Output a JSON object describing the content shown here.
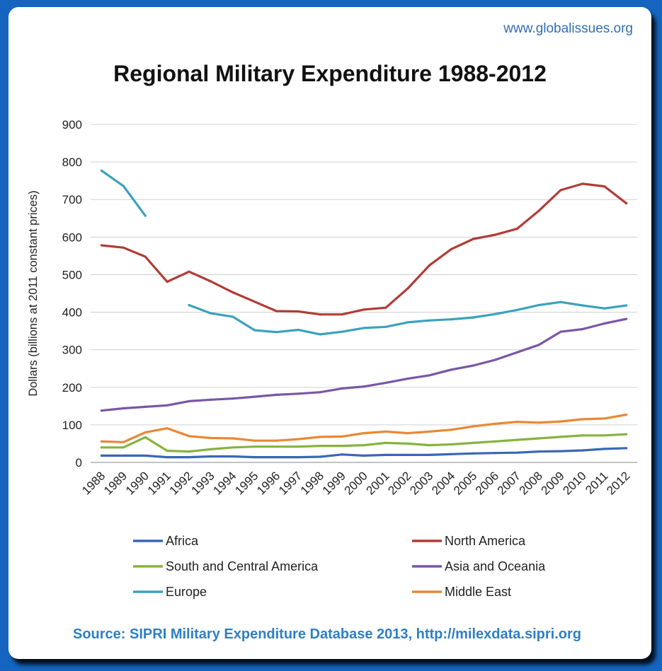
{
  "header": {
    "site_url": "www.globalissues.org",
    "source": "Source: SIPRI Military Expenditure Database 2013, http://milexdata.sipri.org"
  },
  "chart_data": {
    "type": "line",
    "title": "Regional Military Expenditure 1988-2012",
    "xlabel": "",
    "ylabel": "Dollars (billions at 2011 constant prices)",
    "ylim": [
      0,
      900
    ],
    "yticks": [
      0,
      100,
      200,
      300,
      400,
      500,
      600,
      700,
      800,
      900
    ],
    "grid": true,
    "legend_position": "bottom",
    "categories": [
      "1988",
      "1989",
      "1990",
      "1991",
      "1992",
      "1993",
      "1994",
      "1995",
      "1996",
      "1997",
      "1998",
      "1999",
      "2000",
      "2001",
      "2002",
      "2003",
      "2004",
      "2005",
      "2006",
      "2007",
      "2008",
      "2009",
      "2010",
      "2011",
      "2012"
    ],
    "series": [
      {
        "name": "Africa",
        "color": "#3a67b5",
        "values": [
          18,
          18,
          18,
          14,
          14,
          16,
          16,
          14,
          14,
          14,
          15,
          21,
          18,
          20,
          20,
          20,
          22,
          24,
          25,
          26,
          29,
          30,
          32,
          36,
          38
        ]
      },
      {
        "name": "North America",
        "color": "#b23c36",
        "values": [
          578,
          572,
          548,
          481,
          508,
          482,
          453,
          428,
          403,
          402,
          394,
          394,
          407,
          412,
          463,
          525,
          568,
          595,
          606,
          622,
          670,
          725,
          742,
          735,
          690
        ]
      },
      {
        "name": "South and Central America",
        "color": "#86b33f",
        "values": [
          40,
          40,
          67,
          31,
          29,
          35,
          40,
          42,
          42,
          42,
          44,
          44,
          46,
          52,
          50,
          46,
          48,
          52,
          56,
          60,
          64,
          68,
          72,
          72,
          75
        ]
      },
      {
        "name": "Asia and Oceania",
        "color": "#7a56a6",
        "values": [
          138,
          144,
          148,
          152,
          163,
          167,
          170,
          175,
          180,
          183,
          187,
          197,
          202,
          212,
          223,
          232,
          247,
          258,
          273,
          293,
          313,
          348,
          355,
          370,
          382
        ]
      },
      {
        "name": "Europe",
        "color": "#3aa2be",
        "values": [
          777,
          736,
          657,
          null,
          419,
          397,
          388,
          352,
          347,
          353,
          341,
          348,
          358,
          361,
          373,
          378,
          381,
          386,
          395,
          406,
          419,
          427,
          418,
          410,
          418
        ]
      },
      {
        "name": "Middle East",
        "color": "#e98834",
        "values": [
          56,
          54,
          80,
          91,
          70,
          65,
          64,
          58,
          58,
          62,
          68,
          69,
          78,
          82,
          78,
          82,
          87,
          96,
          103,
          108,
          106,
          109,
          115,
          117,
          127
        ]
      }
    ]
  }
}
